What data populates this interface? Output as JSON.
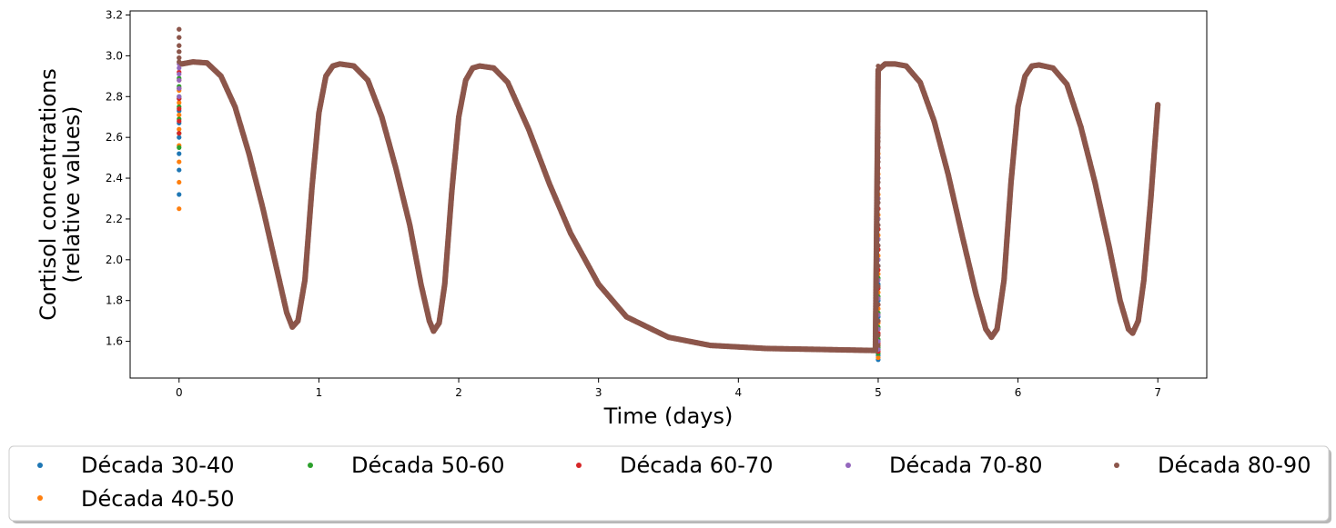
{
  "chart_data": {
    "type": "scatter",
    "title": "",
    "xlabel": "Time (days)",
    "ylabel_lines": [
      "Cortisol concentrations",
      "(relative values)"
    ],
    "xlim": [
      -0.35,
      7.35
    ],
    "ylim": [
      1.42,
      3.22
    ],
    "xticks": [
      0,
      1,
      2,
      3,
      4,
      5,
      6,
      7
    ],
    "yticks": [
      1.6,
      1.8,
      2.0,
      2.2,
      2.4,
      2.6,
      2.8,
      3.0,
      3.2
    ],
    "ytick_labels": [
      "1.6",
      "1.8",
      "2.0",
      "2.2",
      "2.4",
      "2.6",
      "2.8",
      "3.0",
      "3.2"
    ],
    "xtick_labels": [
      "0",
      "1",
      "2",
      "3",
      "4",
      "5",
      "6",
      "7"
    ],
    "grid": false,
    "legend_placement": "bottom-center, outside plot, 5 columns",
    "series": [
      {
        "name": "Década 30-40",
        "color": "#1f77b4",
        "transient_start": [
          2.32,
          2.44,
          2.52,
          2.6,
          2.67,
          2.73,
          2.79,
          2.84
        ],
        "transient_day5": [
          1.51,
          1.53,
          1.56,
          1.6,
          1.66,
          1.72,
          1.8,
          1.88,
          1.97,
          2.05,
          2.15,
          2.25,
          2.35,
          2.45,
          2.55,
          2.64,
          2.73,
          2.8
        ]
      },
      {
        "name": "Década 40-50",
        "color": "#ff7f0e",
        "transient_start": [
          2.25,
          2.38,
          2.48,
          2.56,
          2.64,
          2.71,
          2.77,
          2.83
        ],
        "transient_day5": [
          1.52,
          1.55,
          1.58,
          1.63,
          1.69,
          1.76,
          1.84,
          1.93,
          2.02,
          2.12,
          2.22,
          2.32,
          2.42,
          2.52,
          2.62,
          2.71,
          2.79
        ]
      },
      {
        "name": "Década 50-60",
        "color": "#2ca02c",
        "transient_start": [
          2.55,
          2.62,
          2.69,
          2.75,
          2.8,
          2.85,
          2.89
        ],
        "transient_day5": [
          1.54,
          1.57,
          1.61,
          1.67,
          1.74,
          1.82,
          1.91,
          2.0,
          2.1,
          2.2,
          2.3,
          2.4,
          2.5,
          2.6,
          2.69,
          2.77,
          2.85
        ]
      },
      {
        "name": "Década 60-70",
        "color": "#d62728",
        "transient_start": [
          2.62,
          2.68,
          2.74,
          2.79,
          2.84,
          2.88,
          2.92
        ],
        "transient_day5": [
          1.55,
          1.59,
          1.64,
          1.7,
          1.78,
          1.86,
          1.95,
          2.05,
          2.15,
          2.25,
          2.35,
          2.45,
          2.55,
          2.65,
          2.74,
          2.82,
          2.88
        ]
      },
      {
        "name": "Década 70-80",
        "color": "#9467bd",
        "transient_start": [
          2.8,
          2.84,
          2.88,
          2.91,
          2.94,
          2.96
        ],
        "transient_day5": [
          1.56,
          1.6,
          1.66,
          1.73,
          1.81,
          1.9,
          2.0,
          2.1,
          2.2,
          2.3,
          2.4,
          2.5,
          2.6,
          2.7,
          2.78,
          2.86,
          2.91
        ]
      },
      {
        "name": "Década 80-90",
        "color": "#8c564b",
        "transient_start": [
          3.13,
          3.09,
          3.05,
          3.02,
          2.99,
          2.97
        ],
        "transient_day5": [
          1.58,
          1.63,
          1.7,
          1.78,
          1.87,
          1.97,
          2.07,
          2.17,
          2.28,
          2.38,
          2.48,
          2.58,
          2.68,
          2.77,
          2.85,
          2.91,
          2.95
        ]
      }
    ],
    "common_trajectory_points": [
      [
        0.02,
        2.96
      ],
      [
        0.1,
        2.97
      ],
      [
        0.2,
        2.965
      ],
      [
        0.3,
        2.9
      ],
      [
        0.4,
        2.75
      ],
      [
        0.5,
        2.52
      ],
      [
        0.6,
        2.25
      ],
      [
        0.7,
        1.95
      ],
      [
        0.77,
        1.74
      ],
      [
        0.81,
        1.67
      ],
      [
        0.85,
        1.7
      ],
      [
        0.9,
        1.9
      ],
      [
        0.95,
        2.35
      ],
      [
        1.0,
        2.72
      ],
      [
        1.05,
        2.9
      ],
      [
        1.1,
        2.95
      ],
      [
        1.15,
        2.96
      ],
      [
        1.25,
        2.95
      ],
      [
        1.35,
        2.88
      ],
      [
        1.45,
        2.7
      ],
      [
        1.55,
        2.45
      ],
      [
        1.65,
        2.17
      ],
      [
        1.73,
        1.88
      ],
      [
        1.79,
        1.7
      ],
      [
        1.82,
        1.65
      ],
      [
        1.86,
        1.69
      ],
      [
        1.9,
        1.88
      ],
      [
        1.95,
        2.33
      ],
      [
        2.0,
        2.7
      ],
      [
        2.05,
        2.88
      ],
      [
        2.1,
        2.94
      ],
      [
        2.15,
        2.95
      ],
      [
        2.25,
        2.94
      ],
      [
        2.35,
        2.87
      ],
      [
        2.5,
        2.64
      ],
      [
        2.65,
        2.37
      ],
      [
        2.8,
        2.13
      ],
      [
        3.0,
        1.88
      ],
      [
        3.2,
        1.72
      ],
      [
        3.5,
        1.62
      ],
      [
        3.8,
        1.58
      ],
      [
        4.2,
        1.565
      ],
      [
        4.6,
        1.56
      ],
      [
        4.98,
        1.555
      ],
      [
        5.0,
        2.93
      ],
      [
        5.05,
        2.96
      ],
      [
        5.12,
        2.96
      ],
      [
        5.2,
        2.95
      ],
      [
        5.3,
        2.87
      ],
      [
        5.4,
        2.68
      ],
      [
        5.5,
        2.42
      ],
      [
        5.6,
        2.12
      ],
      [
        5.7,
        1.83
      ],
      [
        5.77,
        1.66
      ],
      [
        5.81,
        1.62
      ],
      [
        5.85,
        1.66
      ],
      [
        5.9,
        1.9
      ],
      [
        5.95,
        2.38
      ],
      [
        6.0,
        2.75
      ],
      [
        6.05,
        2.9
      ],
      [
        6.1,
        2.95
      ],
      [
        6.15,
        2.955
      ],
      [
        6.25,
        2.94
      ],
      [
        6.35,
        2.86
      ],
      [
        6.45,
        2.65
      ],
      [
        6.55,
        2.38
      ],
      [
        6.65,
        2.07
      ],
      [
        6.73,
        1.8
      ],
      [
        6.79,
        1.66
      ],
      [
        6.82,
        1.64
      ],
      [
        6.86,
        1.7
      ],
      [
        6.9,
        1.9
      ],
      [
        6.95,
        2.3
      ],
      [
        7.0,
        2.76
      ]
    ]
  },
  "legend": {
    "items": [
      {
        "label": "Década 30-40",
        "color": "#1f77b4"
      },
      {
        "label": "Década 50-60",
        "color": "#2ca02c"
      },
      {
        "label": "Década 60-70",
        "color": "#d62728"
      },
      {
        "label": "Década 70-80",
        "color": "#9467bd"
      },
      {
        "label": "Década 80-90",
        "color": "#8c564b"
      },
      {
        "label": "Década 40-50",
        "color": "#ff7f0e"
      }
    ]
  }
}
